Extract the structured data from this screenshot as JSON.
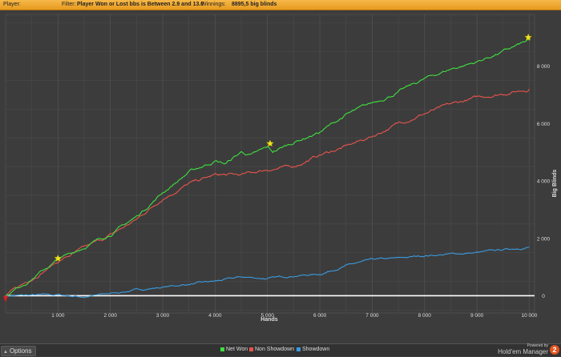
{
  "header": {
    "player_label": "Player:",
    "filter_label": "Filter:",
    "filter_value": "Player Won or Lost bbs is Between 2.9 and 13.0",
    "winnings_label": "Winnings:",
    "winnings_value": "8895,5 big blinds"
  },
  "footer": {
    "options_label": "Options",
    "brand_powered": "Powered by",
    "brand_name": "Hold'em Manager",
    "brand_badge": "2"
  },
  "colors": {
    "net_won": "#3ee03e",
    "non_showdown": "#e8544c",
    "showdown": "#3a9be0",
    "zero_line": "#ffffff",
    "star": "#f2e21c",
    "background": "#3c3c3c",
    "grid": "#555555"
  },
  "chart_data": {
    "type": "line",
    "xlabel": "Hands",
    "ylabel": "Big Blinds",
    "xlim": [
      0,
      10100
    ],
    "ylim": [
      -600,
      9800
    ],
    "x_ticks": [
      1000,
      2000,
      3000,
      4000,
      5000,
      6000,
      7000,
      8000,
      9000,
      10000
    ],
    "x_tick_labels": [
      "1 000",
      "2 000",
      "3 000",
      "4 000",
      "5 000",
      "6 000",
      "7 000",
      "8 000",
      "9 000",
      "10 000"
    ],
    "y_ticks": [
      0,
      2000,
      4000,
      6000,
      8000
    ],
    "y_tick_labels": [
      "0",
      "2 000",
      "4 000",
      "6 000",
      "8 000"
    ],
    "y_axis_side": "right",
    "grid": true,
    "legend_position": "bottom-center",
    "series": [
      {
        "name": "Net Won",
        "color": "#3ee03e",
        "x": [
          0,
          500,
          1000,
          1500,
          2000,
          2500,
          3000,
          3500,
          4000,
          4200,
          4500,
          4700,
          5000,
          5100,
          5500,
          6000,
          6500,
          7000,
          7500,
          8000,
          8500,
          9000,
          9500,
          10000
        ],
        "y": [
          0,
          600,
          1250,
          1700,
          2150,
          2750,
          3600,
          4300,
          4700,
          4600,
          5000,
          4900,
          5150,
          5000,
          5350,
          5700,
          6300,
          6700,
          7100,
          7550,
          7900,
          8150,
          8500,
          8895.5
        ]
      },
      {
        "name": "Non Showdown",
        "color": "#e8544c",
        "x": [
          0,
          500,
          1000,
          1500,
          2000,
          2500,
          3000,
          3500,
          4000,
          4500,
          5000,
          5500,
          6000,
          6500,
          7000,
          7500,
          8000,
          8500,
          9000,
          9500,
          10000
        ],
        "y": [
          0,
          600,
          1200,
          1650,
          2100,
          2650,
          3400,
          3900,
          4200,
          4200,
          4400,
          4500,
          4900,
          5200,
          5550,
          6000,
          6350,
          6650,
          6900,
          7050,
          7200
        ]
      },
      {
        "name": "Showdown",
        "color": "#3a9be0",
        "x": [
          0,
          500,
          1000,
          1500,
          2000,
          2500,
          3000,
          3500,
          4000,
          4500,
          5000,
          5500,
          6000,
          6500,
          7000,
          7500,
          8000,
          8500,
          9000,
          9500,
          10000
        ],
        "y": [
          0,
          20,
          30,
          -40,
          80,
          200,
          300,
          400,
          500,
          650,
          600,
          700,
          750,
          1050,
          1250,
          1300,
          1400,
          1450,
          1500,
          1600,
          1700
        ]
      }
    ],
    "stars": [
      {
        "x": 1000,
        "y": 1300
      },
      {
        "x": 5050,
        "y": 5300
      },
      {
        "x": 9980,
        "y": 9000
      }
    ],
    "start_marker": {
      "x": 0,
      "y": -150
    }
  }
}
